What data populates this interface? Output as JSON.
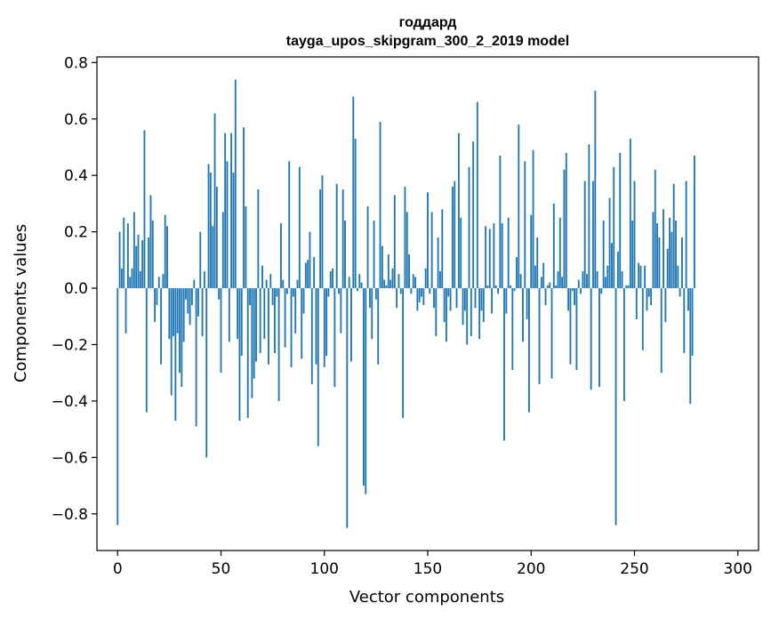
{
  "chart_data": {
    "type": "bar",
    "title": "годдард",
    "subtitle": "tayga_upos_skipgram_300_2_2019 model",
    "xlabel": "Vector components",
    "ylabel": "Components values",
    "xlim": [
      -10,
      310
    ],
    "ylim": [
      -0.93,
      0.82
    ],
    "x_ticks": [
      0,
      50,
      100,
      150,
      200,
      250,
      300
    ],
    "x_tick_labels": [
      "0",
      "50",
      "100",
      "150",
      "200",
      "250",
      "300"
    ],
    "y_ticks": [
      -0.8,
      -0.6,
      -0.4,
      -0.2,
      0.0,
      0.2,
      0.4,
      0.6,
      0.8
    ],
    "y_tick_labels": [
      "−0.8",
      "−0.6",
      "−0.4",
      "−0.2",
      "0.0",
      "0.2",
      "0.4",
      "0.6",
      "0.8"
    ],
    "bar_color": "#1f77b4",
    "values": [
      -0.84,
      0.2,
      0.07,
      0.25,
      -0.16,
      0.23,
      0.04,
      0.07,
      0.27,
      0.15,
      0.19,
      0.06,
      0.17,
      0.56,
      -0.44,
      0.18,
      0.33,
      0.24,
      -0.12,
      -0.06,
      0.04,
      -0.27,
      0.05,
      0.26,
      0.22,
      -0.18,
      -0.38,
      -0.17,
      -0.47,
      -0.16,
      -0.3,
      -0.35,
      -0.19,
      -0.04,
      -0.09,
      -0.13,
      -0.06,
      0.03,
      -0.49,
      -0.1,
      0.2,
      -0.17,
      0.06,
      -0.6,
      0.44,
      0.41,
      0.22,
      0.62,
      0.36,
      -0.04,
      -0.3,
      0.27,
      0.55,
      0.45,
      -0.19,
      0.55,
      0.41,
      0.74,
      -0.18,
      -0.47,
      -0.24,
      0.57,
      0.29,
      -0.46,
      -0.06,
      -0.39,
      -0.32,
      -0.26,
      0.35,
      -0.23,
      0.08,
      -0.18,
      0.03,
      -0.27,
      0.05,
      -0.06,
      -0.23,
      -0.03,
      -0.4,
      0.23,
      0.03,
      -0.21,
      -0.02,
      0.45,
      -0.28,
      -0.03,
      -0.16,
      0.03,
      0.43,
      -0.25,
      -0.09,
      0.09,
      0.1,
      0.2,
      -0.34,
      0.11,
      -0.27,
      -0.56,
      0.35,
      0.4,
      -0.28,
      -0.24,
      -0.03,
      0.06,
      0.07,
      -0.35,
      0.37,
      -0.02,
      -0.16,
      0.35,
      0.24,
      -0.85,
      0.04,
      -0.26,
      0.68,
      0.53,
      -0.01,
      0.05,
      0.02,
      -0.7,
      -0.73,
      0.29,
      -0.07,
      -0.18,
      0.24,
      -0.04,
      -0.27,
      0.59,
      0.15,
      0.03,
      0.01,
      0.12,
      0.03,
      0.07,
      0.33,
      -0.07,
      0.05,
      -0.02,
      -0.46,
      0.36,
      0.27,
      0.12,
      -0.02,
      0.05,
      0.04,
      -0.08,
      -0.05,
      -0.03,
      -0.06,
      0.07,
      0.34,
      -0.02,
      0.27,
      -0.07,
      -0.17,
      0.18,
      0.06,
      0.28,
      -0.12,
      -0.19,
      -0.03,
      -0.08,
      0.36,
      0.38,
      -0.07,
      0.55,
      0.25,
      -0.13,
      -0.08,
      -0.2,
      0.43,
      -0.17,
      0.52,
      -0.07,
      0.66,
      -0.18,
      -0.08,
      -0.12,
      0.22,
      0.01,
      0.21,
      -0.09,
      0.23,
      0.01,
      -0.02,
      0.47,
      0.23,
      -0.54,
      -0.09,
      0.25,
      0.01,
      -0.29,
      -0.01,
      0.11,
      0.58,
      0.05,
      -0.19,
      0.45,
      -0.11,
      -0.44,
      0.26,
      0.49,
      0.08,
      0.18,
      -0.34,
      0.04,
      0.09,
      -0.06,
      0.01,
      0.02,
      -0.32,
      0.3,
      0.01,
      0.06,
      0.25,
      0.04,
      0.42,
      0.48,
      -0.08,
      -0.27,
      -0.01,
      -0.06,
      -0.29,
      0.03,
      -0.02,
      0.06,
      0.38,
      0.05,
      0.51,
      -0.36,
      0.38,
      0.7,
      0.06,
      -0.35,
      -0.02,
      0.24,
      0.04,
      0.08,
      0.32,
      0.16,
      0.43,
      -0.84,
      0.13,
      0.48,
      0.06,
      -0.4,
      0.01,
      0.01,
      0.53,
      0.24,
      0.38,
      -0.11,
      0.09,
      0.08,
      -0.22,
      0.08,
      -0.08,
      -0.03,
      -0.06,
      0.27,
      0.42,
      0.23,
      0.18,
      -0.3,
      0.28,
      -0.12,
      0.14,
      0.25,
      0.2,
      0.37,
      0.24,
      0.08,
      -0.03,
      0.18,
      -0.23,
      0.38,
      -0.08,
      -0.41,
      -0.24,
      0.47
    ]
  }
}
